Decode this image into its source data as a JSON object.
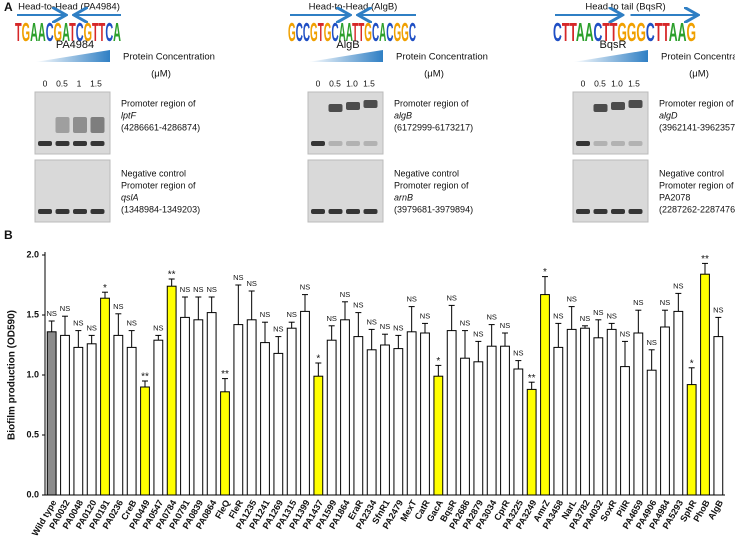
{
  "panel_a": {
    "label": "A",
    "concentration_label": "Protein Concentration",
    "concentration_unit": "(μM)",
    "columns": [
      {
        "motif_title": "Head-to-Head (PA4984)",
        "motif": "TGAACGATCGTTCA",
        "protein": "PA4984",
        "concentrations": [
          "0",
          "0.5",
          "1",
          "1.5"
        ],
        "promoter_text": "Promoter region of",
        "promoter_gene": "lptF",
        "promoter_range": "(4286661-4286874)",
        "control_text": "Negative control",
        "control_promoter_text": "Promoter region of",
        "control_gene": "qslA",
        "control_range": "(1348984-1349203)"
      },
      {
        "motif_title": "Head-to-Head (AlgB)",
        "motif": "GCCGTGCAATTGCACGGC",
        "protein": "AlgB",
        "concentrations": [
          "0",
          "0.5",
          "1.0",
          "1.5"
        ],
        "promoter_text": "Promoter region of",
        "promoter_gene": "algB",
        "promoter_range": "(6172999-6173217)",
        "control_text": "Negative control",
        "control_promoter_text": "Promoter region of",
        "control_gene": "arnB",
        "control_range": "(3979681-3979894)"
      },
      {
        "motif_title": "Head to tail (BqsR)",
        "motif": "CTTAACTTGGGCTTAAG",
        "protein": "BqsR",
        "concentrations": [
          "0",
          "0.5",
          "1.0",
          "1.5"
        ],
        "promoter_text": "Promoter region of",
        "promoter_gene": "algD",
        "promoter_range": "(3962141-3962357)",
        "control_text": "Negative control",
        "control_promoter_text": "Promoter region of",
        "control_gene": "PA2078",
        "control_range": "(2287262-2287476)"
      }
    ]
  },
  "chart_data": {
    "type": "bar",
    "panel_label": "B",
    "y_label": "Biofilm production (OD590)",
    "categories": [
      "Wild type",
      "PA0032",
      "PA0048",
      "PA0120",
      "PA0191",
      "PA0236",
      "CreB",
      "PA0449",
      "PA0547",
      "PA0784",
      "PA0791",
      "PA0839",
      "PA0864",
      "FleQ",
      "FleR",
      "PA1235",
      "PA1241",
      "PA1269",
      "PA1315",
      "PA1399",
      "PA1437",
      "PA1599",
      "PA1864",
      "EraR",
      "PA2334",
      "SfnR1",
      "PA2479",
      "MexT",
      "CatR",
      "GacA",
      "BqsR",
      "PA2686",
      "PA2879",
      "PA3034",
      "CprR",
      "PA3225",
      "PA3249",
      "AmrZ",
      "PA3458",
      "NarL",
      "PA3782",
      "PA4032",
      "SoxR",
      "PilR",
      "PA4659",
      "PA4906",
      "PA4984",
      "PA5293",
      "SphR",
      "PhoB",
      "AlgB"
    ],
    "values": [
      1.36,
      1.33,
      1.23,
      1.26,
      1.64,
      1.33,
      1.23,
      0.9,
      1.29,
      1.74,
      1.48,
      1.46,
      1.52,
      0.86,
      1.42,
      1.46,
      1.27,
      1.18,
      1.39,
      1.53,
      0.99,
      1.29,
      1.46,
      1.32,
      1.21,
      1.25,
      1.22,
      1.36,
      1.35,
      0.99,
      1.37,
      1.14,
      1.11,
      1.24,
      1.24,
      1.05,
      0.88,
      1.67,
      1.23,
      1.38,
      1.39,
      1.31,
      1.38,
      1.07,
      1.35,
      1.04,
      1.4,
      1.53,
      0.92,
      1.84,
      1.32
    ],
    "errors": [
      0.09,
      0.16,
      0.14,
      0.07,
      0.05,
      0.18,
      0.14,
      0.05,
      0.04,
      0.06,
      0.17,
      0.19,
      0.13,
      0.11,
      0.33,
      0.24,
      0.17,
      0.14,
      0.05,
      0.14,
      0.11,
      0.12,
      0.15,
      0.2,
      0.17,
      0.09,
      0.11,
      0.21,
      0.08,
      0.09,
      0.21,
      0.23,
      0.17,
      0.18,
      0.11,
      0.07,
      0.06,
      0.15,
      0.2,
      0.19,
      0.02,
      0.15,
      0.05,
      0.21,
      0.19,
      0.17,
      0.14,
      0.15,
      0.14,
      0.09,
      0.16
    ],
    "annotations": [
      "NS",
      "NS",
      "NS",
      "NS",
      "*",
      "NS",
      "NS",
      "**",
      "NS",
      "**",
      "NS",
      "NS",
      "NS",
      "**",
      "NS",
      "NS",
      "NS",
      "NS",
      "NS",
      "NS",
      "*",
      "NS",
      "NS",
      "NS",
      "NS",
      "NS",
      "NS",
      "NS",
      "NS",
      "*",
      "NS",
      "NS",
      "NS",
      "NS",
      "NS",
      "NS",
      "**",
      "*",
      "NS",
      "NS",
      "NS",
      "NS",
      "NS",
      "NS",
      "NS",
      "NS",
      "NS",
      "NS",
      "*",
      "**",
      "NS"
    ],
    "colors": [
      "#8c8c8c",
      "#ffffff",
      "#ffffff",
      "#ffffff",
      "#ffff00",
      "#ffffff",
      "#ffffff",
      "#ffff00",
      "#ffffff",
      "#ffff00",
      "#ffffff",
      "#ffffff",
      "#ffffff",
      "#ffff00",
      "#ffffff",
      "#ffffff",
      "#ffffff",
      "#ffffff",
      "#ffffff",
      "#ffffff",
      "#ffff00",
      "#ffffff",
      "#ffffff",
      "#ffffff",
      "#ffffff",
      "#ffffff",
      "#ffffff",
      "#ffffff",
      "#ffffff",
      "#ffff00",
      "#ffffff",
      "#ffffff",
      "#ffffff",
      "#ffffff",
      "#ffffff",
      "#ffffff",
      "#ffff00",
      "#ffff00",
      "#ffffff",
      "#ffffff",
      "#ffffff",
      "#ffffff",
      "#ffffff",
      "#ffffff",
      "#ffffff",
      "#ffffff",
      "#ffffff",
      "#ffffff",
      "#ffff00",
      "#ffff00",
      "#ffffff"
    ],
    "ylim": [
      0,
      2.0
    ],
    "yticks": [
      {
        "value": 0,
        "label": "0.0"
      },
      0.5,
      {
        "value": 1,
        "label": "1.0"
      },
      1.5,
      {
        "value": 2,
        "label": "2.0"
      }
    ]
  }
}
